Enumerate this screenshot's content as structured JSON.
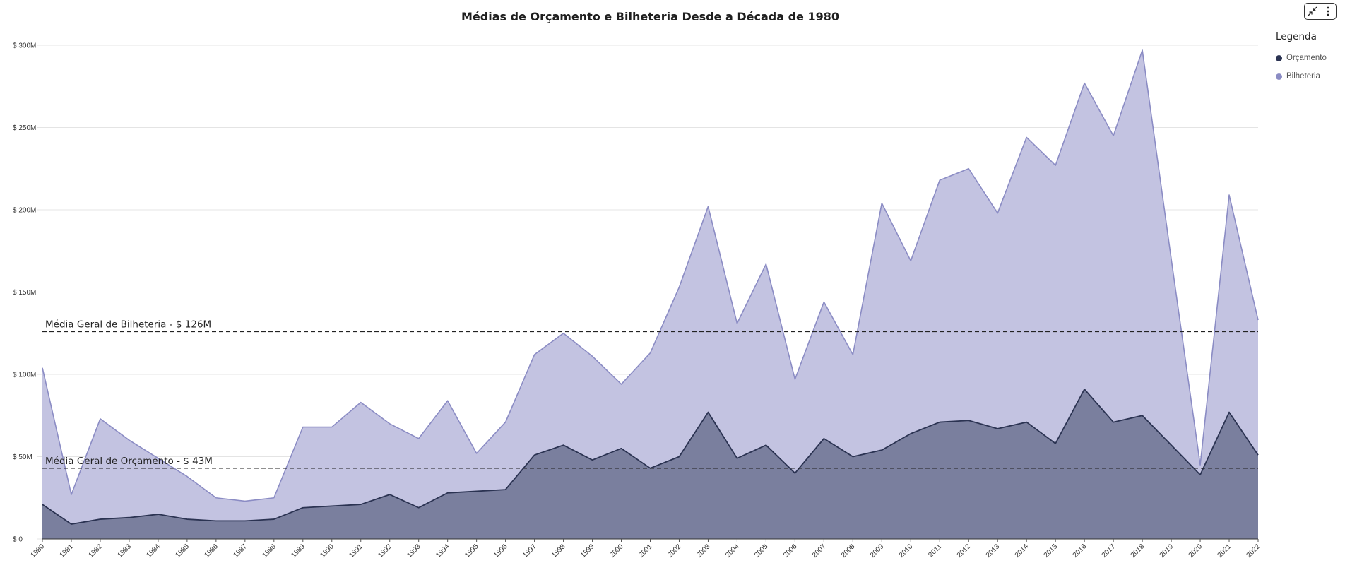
{
  "toolbar": {
    "collapse_icon": "collapse-icon",
    "more_icon": "more-vertical-icon"
  },
  "legend": {
    "title": "Legenda"
  },
  "chart_data": {
    "type": "area",
    "title": "Médias de Orçamento e Bilheteria Desde a Década de 1980",
    "xlabel": "",
    "ylabel": "",
    "ylim": [
      0,
      300
    ],
    "yticks": [
      {
        "value": 0,
        "label": "$ 0"
      },
      {
        "value": 50,
        "label": "$ 50M"
      },
      {
        "value": 100,
        "label": "$ 100M"
      },
      {
        "value": 150,
        "label": "$ 150M"
      },
      {
        "value": 200,
        "label": "$ 200M"
      },
      {
        "value": 250,
        "label": "$ 250M"
      },
      {
        "value": 300,
        "label": "$ 300M"
      }
    ],
    "grid": true,
    "legend_position": "top-right",
    "categories": [
      "1980",
      "1981",
      "1982",
      "1983",
      "1984",
      "1985",
      "1986",
      "1987",
      "1988",
      "1989",
      "1990",
      "1991",
      "1992",
      "1993",
      "1994",
      "1995",
      "1996",
      "1997",
      "1998",
      "1999",
      "2000",
      "2001",
      "2002",
      "2003",
      "2004",
      "2005",
      "2006",
      "2007",
      "2008",
      "2009",
      "2010",
      "2011",
      "2012",
      "2013",
      "2014",
      "2015",
      "2016",
      "2017",
      "2018",
      "2019",
      "2020",
      "2021",
      "2022"
    ],
    "series": [
      {
        "name": "Bilheteria",
        "color": "#8b8cc4",
        "fill": "#c3c3e1",
        "values": [
          104,
          27,
          73,
          60,
          49,
          38,
          25,
          23,
          25,
          68,
          68,
          83,
          70,
          61,
          84,
          52,
          71,
          112,
          125,
          111,
          94,
          113,
          153,
          202,
          131,
          167,
          97,
          144,
          112,
          204,
          169,
          218,
          225,
          198,
          244,
          227,
          277,
          245,
          297,
          170,
          45,
          209,
          133
        ]
      },
      {
        "name": "Orçamento",
        "color": "#2b3352",
        "fill": "#7a7f9e",
        "values": [
          21,
          9,
          12,
          13,
          15,
          12,
          11,
          11,
          12,
          19,
          20,
          21,
          27,
          19,
          28,
          29,
          30,
          51,
          57,
          48,
          55,
          43,
          50,
          77,
          49,
          57,
          40,
          61,
          50,
          54,
          64,
          71,
          72,
          67,
          71,
          58,
          91,
          71,
          75,
          57,
          39,
          77,
          51
        ]
      }
    ],
    "reference_lines": [
      {
        "label": "Média Geral de Bilheteria - $ 126M",
        "value": 126
      },
      {
        "label": "Média Geral de Orçamento - $ 43M",
        "value": 43
      }
    ]
  }
}
